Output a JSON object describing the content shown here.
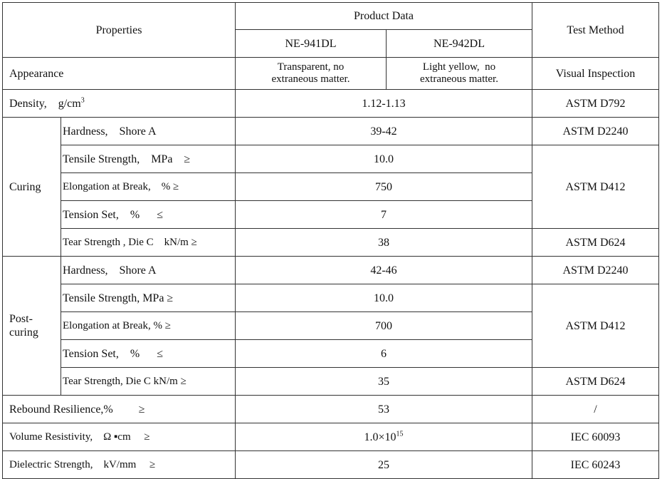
{
  "header": {
    "properties": "Properties",
    "product_data": "Product Data",
    "products": [
      "NE-941DL",
      "NE-942DL"
    ],
    "test_method": "Test Method"
  },
  "appearance": {
    "property": "Appearance",
    "values": [
      "Transparent, no\nextraneous matter.",
      "Light yellow,  no\nextraneous matter."
    ],
    "method": "Visual Inspection"
  },
  "density": {
    "property": "Density,    g/cm",
    "property_sup": "3",
    "value": "1.12-1.13",
    "method": "ASTM D792"
  },
  "groups": [
    {
      "name": "Curing",
      "rows": [
        {
          "property": "Hardness,    Shore A",
          "value": "39-42",
          "method": "ASTM D2240"
        },
        {
          "property": "Tensile Strength,    MPa    ≥",
          "value": "10.0",
          "method": "ASTM D412"
        },
        {
          "property": "Elongation at Break,    % ≥",
          "value": "750"
        },
        {
          "property": "Tension Set,    %      ≤",
          "value": "7"
        },
        {
          "property": "Tear Strength , Die C    kN/m ≥",
          "value": "38",
          "method": "ASTM D624"
        }
      ]
    },
    {
      "name": "Post-\ncuring",
      "rows": [
        {
          "property": "Hardness,    Shore A",
          "value": "42-46",
          "method": "ASTM D2240"
        },
        {
          "property": "Tensile Strength, MPa ≥",
          "value": "10.0",
          "method": "ASTM D412"
        },
        {
          "property": "Elongation at Break, % ≥",
          "value": "700"
        },
        {
          "property": "Tension Set,    %      ≤",
          "value": "6"
        },
        {
          "property": "Tear Strength, Die C kN/m ≥",
          "value": "35",
          "method": "ASTM D624"
        }
      ]
    }
  ],
  "rebound": {
    "property": "Rebound Resilience,%         ≥",
    "value": "53",
    "method": "/"
  },
  "volume_resistivity": {
    "property": "Volume Resistivity,    Ω ▪cm     ≥",
    "value": "1.0×10",
    "value_sup": "15",
    "method": "IEC 60093"
  },
  "dielectric": {
    "property": "Dielectric Strength,    kV/mm     ≥",
    "value": "25",
    "method": "IEC 60243"
  }
}
